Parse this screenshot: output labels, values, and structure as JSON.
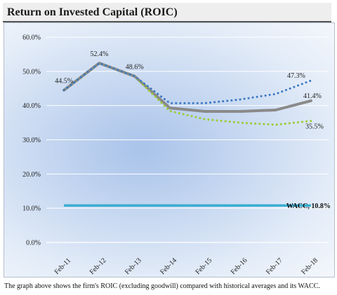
{
  "header": {
    "title": "Return on Invested Capital (ROIC)"
  },
  "caption": "The graph above shows the firm's ROIC (excluding goodwill) compared with historical averages and its WACC.",
  "colors": {
    "roic": "#8a8a8a",
    "green_dotted": "#9acd32",
    "blue_dotted": "#3a78c2",
    "wacc": "#3aaed1"
  },
  "chart_data": {
    "type": "line",
    "title": "",
    "xlabel": "",
    "ylabel": "",
    "ylim": [
      0,
      60
    ],
    "yticks": [
      "0.0%",
      "10.0%",
      "20.0%",
      "30.0%",
      "40.0%",
      "50.0%",
      "60.0%"
    ],
    "ytick_values": [
      0,
      10,
      20,
      30,
      40,
      50,
      60
    ],
    "categories": [
      "Feb-11",
      "Feb-12",
      "Feb-13",
      "Feb-14",
      "Feb-15",
      "Feb-16",
      "Feb-17",
      "Feb-18"
    ],
    "grid": true,
    "series": [
      {
        "style": "solid-gray",
        "values": [
          44.5,
          52.4,
          48.6,
          39.3,
          38.3,
          38.3,
          38.7,
          41.4
        ]
      },
      {
        "style": "dotted-green",
        "values": [
          44.5,
          52.4,
          48.6,
          38.4,
          36.0,
          35.0,
          34.4,
          35.5
        ]
      },
      {
        "style": "dotted-blue",
        "values": [
          44.5,
          52.4,
          48.6,
          40.7,
          40.7,
          41.8,
          43.4,
          47.3
        ]
      },
      {
        "style": "solid-teal",
        "values": [
          10.8,
          10.8,
          10.8,
          10.8,
          10.8,
          10.8,
          10.8,
          10.8
        ]
      }
    ],
    "annotations": [
      {
        "text": "44.5%",
        "x": "Feb-11",
        "y": 44.5
      },
      {
        "text": "52.4%",
        "x": "Feb-12",
        "y": 52.4
      },
      {
        "text": "48.6%",
        "x": "Feb-13",
        "y": 48.6
      },
      {
        "text": "47.3%",
        "x": "Feb-18",
        "y": 47.3
      },
      {
        "text": "41.4%",
        "x": "Feb-18",
        "y": 41.4
      },
      {
        "text": "35.5%",
        "x": "Feb-18",
        "y": 35.5
      },
      {
        "text": "WACC, 10.8%",
        "x": "Feb-18",
        "y": 10.8
      }
    ]
  }
}
